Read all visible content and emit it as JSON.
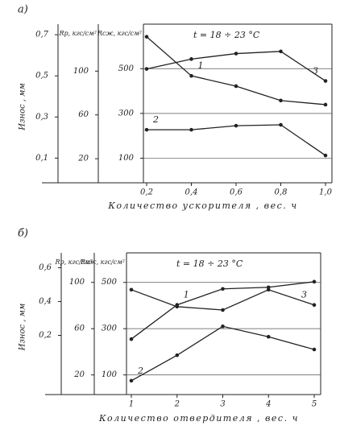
{
  "chart_data": [
    {
      "type": "line",
      "title": "а)",
      "xlabel": "Количество ускорителя , вес. ч",
      "annotation": "t = 18 ÷ 23 °C",
      "x": [
        0.2,
        0.4,
        0.6,
        0.8,
        1.0
      ],
      "xlim": [
        0.2,
        1.0
      ],
      "xticks": [
        {
          "value": 0.2,
          "label": "0,2"
        },
        {
          "value": 0.4,
          "label": "0,4"
        },
        {
          "value": 0.6,
          "label": "0,6"
        },
        {
          "value": 0.8,
          "label": "0,8"
        },
        {
          "value": 1.0,
          "label": "1,0"
        }
      ],
      "grid": true,
      "color": "#222",
      "axes": [
        {
          "label": "Износ , мм",
          "lim": [
            -0.02,
            0.72
          ],
          "ticks": [
            {
              "value": 0.7,
              "label": "0,7"
            },
            {
              "value": 0.5,
              "label": "0,5"
            },
            {
              "value": 0.3,
              "label": "0,3"
            },
            {
              "value": 0.1,
              "label": "0,1"
            }
          ]
        },
        {
          "label": "Rр, кгс/см²",
          "lim": [
            -2,
            137
          ],
          "ticks": [
            100,
            60,
            20
          ]
        },
        {
          "label": "Rсж, кгс/см²",
          "lim": [
            -10,
            670
          ],
          "ticks": [
            500,
            300,
            100
          ]
        }
      ],
      "series": [
        {
          "name": "1",
          "axis": 0,
          "values": [
            0.69,
            0.5,
            0.45,
            0.38,
            0.36
          ]
        },
        {
          "name": "2",
          "axis": 2,
          "values": [
            227,
            227,
            245,
            249,
            112
          ]
        },
        {
          "name": "3",
          "axis": 1,
          "values": [
            102,
            111,
            116,
            118,
            91
          ]
        }
      ]
    },
    {
      "type": "line",
      "title": "б)",
      "xlabel": "Количество отвердителя , вес. ч",
      "annotation": "t = 18 ÷ 23 °C",
      "x": [
        1,
        2,
        3,
        4,
        5
      ],
      "xlim": [
        1,
        5
      ],
      "xticks": [
        1,
        2,
        3,
        4,
        5
      ],
      "grid": true,
      "color": "#222",
      "axes": [
        {
          "label": "Износ , мм",
          "lim": [
            -0.15,
            0.65
          ],
          "ticks": [
            {
              "value": 0.6,
              "label": "0,6"
            },
            {
              "value": 0.4,
              "label": "0,4"
            },
            {
              "value": 0.2,
              "label": "0,2"
            }
          ]
        },
        {
          "label": "Rр, кгс/см²",
          "lim": [
            3,
            120
          ],
          "ticks": [
            100,
            60,
            20
          ]
        },
        {
          "label": "Rсж, кгс/см²",
          "lim": [
            15,
            600
          ],
          "ticks": [
            500,
            300,
            100
          ]
        }
      ],
      "series": [
        {
          "name": "1",
          "axis": 2,
          "values": [
            255,
            403,
            472,
            479,
            503
          ]
        },
        {
          "name": "2",
          "axis": 1,
          "values": [
            15,
            37,
            62,
            53,
            42
          ]
        },
        {
          "name": "3",
          "axis": 0,
          "values": [
            0.47,
            0.37,
            0.35,
            0.47,
            0.38
          ]
        }
      ]
    }
  ]
}
